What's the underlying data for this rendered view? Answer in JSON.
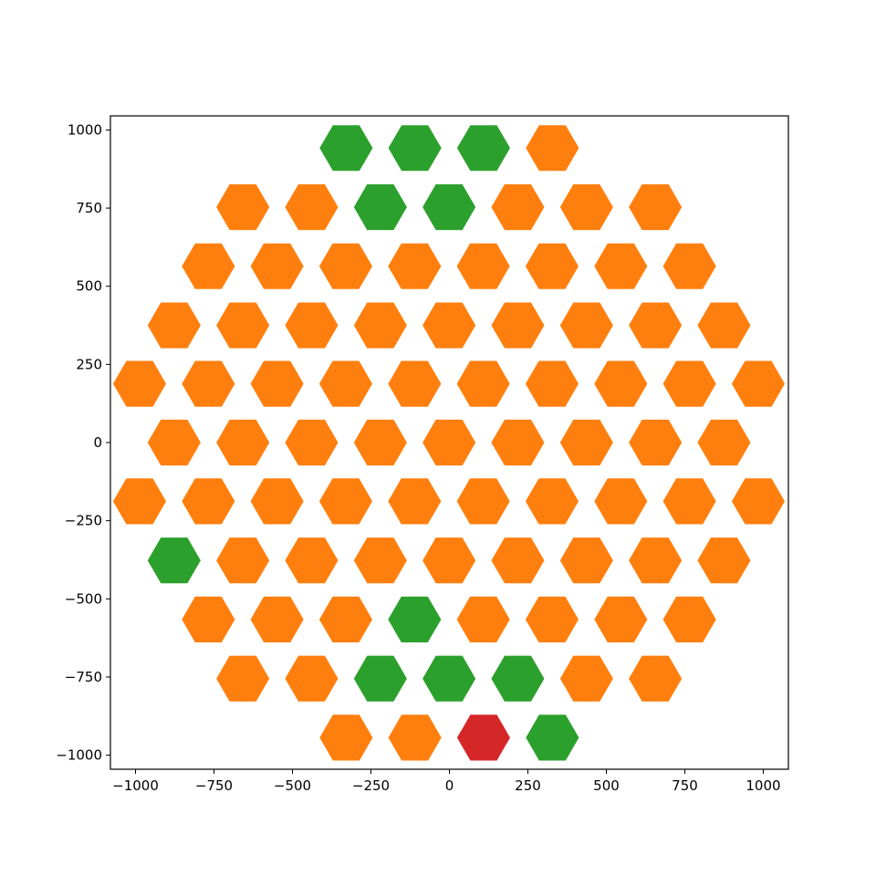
{
  "colors": {
    "orange": "#ff7f0e",
    "green": "#2ca02c",
    "red": "#d62728",
    "axis": "#000000",
    "background": "#ffffff"
  },
  "chart_data": {
    "type": "hexbin",
    "title": "",
    "xlabel": "",
    "ylabel": "",
    "xlim": [
      -1080,
      1080
    ],
    "ylim": [
      -1045,
      1045
    ],
    "x_ticks": [
      -1000,
      -750,
      -500,
      -250,
      0,
      250,
      500,
      750,
      1000
    ],
    "x_tick_labels": [
      "−1000",
      "−750",
      "−500",
      "−250",
      "0",
      "250",
      "500",
      "750",
      "1000"
    ],
    "y_ticks": [
      -1000,
      -750,
      -500,
      -250,
      0,
      250,
      500,
      750,
      1000
    ],
    "y_tick_labels": [
      "−1000",
      "−750",
      "−500",
      "−250",
      "0",
      "250",
      "500",
      "750",
      "1000"
    ],
    "grid": false,
    "legend": false,
    "hex_radius": 103,
    "hex_gap_fraction": 0.18,
    "rows": [
      {
        "y": 942,
        "x_start": -329,
        "dx": 219,
        "colors": [
          "green",
          "green",
          "green",
          "orange"
        ]
      },
      {
        "y": 753,
        "x_start": -658,
        "dx": 219,
        "colors": [
          "orange",
          "orange",
          "green",
          "green",
          "orange",
          "orange",
          "orange"
        ]
      },
      {
        "y": 564,
        "x_start": -768,
        "dx": 219,
        "colors": [
          "orange",
          "orange",
          "orange",
          "orange",
          "orange",
          "orange",
          "orange",
          "orange"
        ]
      },
      {
        "y": 375,
        "x_start": -877,
        "dx": 219,
        "colors": [
          "orange",
          "orange",
          "orange",
          "orange",
          "orange",
          "orange",
          "orange",
          "orange",
          "orange"
        ]
      },
      {
        "y": 188,
        "x_start": -987,
        "dx": 219,
        "colors": [
          "orange",
          "orange",
          "orange",
          "orange",
          "orange",
          "orange",
          "orange",
          "orange",
          "orange",
          "orange"
        ]
      },
      {
        "y": 0,
        "x_start": -877,
        "dx": 219,
        "colors": [
          "orange",
          "orange",
          "orange",
          "orange",
          "orange",
          "orange",
          "orange",
          "orange",
          "orange"
        ]
      },
      {
        "y": -188,
        "x_start": -987,
        "dx": 219,
        "colors": [
          "orange",
          "orange",
          "orange",
          "orange",
          "orange",
          "orange",
          "orange",
          "orange",
          "orange",
          "orange"
        ]
      },
      {
        "y": -377,
        "x_start": -877,
        "dx": 219,
        "colors": [
          "green",
          "orange",
          "orange",
          "orange",
          "orange",
          "orange",
          "orange",
          "orange",
          "orange"
        ]
      },
      {
        "y": -566,
        "x_start": -768,
        "dx": 219,
        "colors": [
          "orange",
          "orange",
          "orange",
          "green",
          "orange",
          "orange",
          "orange",
          "orange"
        ]
      },
      {
        "y": -755,
        "x_start": -658,
        "dx": 219,
        "colors": [
          "orange",
          "orange",
          "green",
          "green",
          "green",
          "orange",
          "orange"
        ]
      },
      {
        "y": -944,
        "x_start": -329,
        "dx": 219,
        "colors": [
          "orange",
          "orange",
          "red",
          "green"
        ]
      }
    ]
  }
}
